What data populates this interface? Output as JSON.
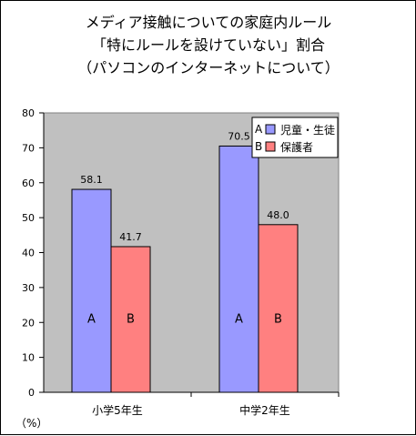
{
  "chart_data": {
    "type": "bar",
    "title_lines": [
      "メディア接触についての家庭内ルール",
      "「特にルールを設けていない」割合",
      "（パソコンのインターネットについて）"
    ],
    "categories": [
      "小学5年生",
      "中学2年生"
    ],
    "series": [
      {
        "name": "児童・生徒",
        "values": [
          58.1,
          70.5
        ],
        "value_labels": [
          "58.1",
          "70.5"
        ],
        "bar_letter": "A",
        "color": "#9999ff"
      },
      {
        "name": "保護者",
        "values": [
          41.7,
          48.0
        ],
        "value_labels": [
          "41.7",
          "48.0"
        ],
        "bar_letter": "B",
        "color": "#ff8080"
      }
    ],
    "legend_letters": [
      "A",
      "B"
    ],
    "ylim": [
      0,
      80
    ],
    "yticks": [
      0,
      10,
      20,
      30,
      40,
      50,
      60,
      70,
      80
    ],
    "y_unit": "（%）",
    "plot_background": "#c0c0c0",
    "legend_placement": "top-right",
    "grid": false
  }
}
